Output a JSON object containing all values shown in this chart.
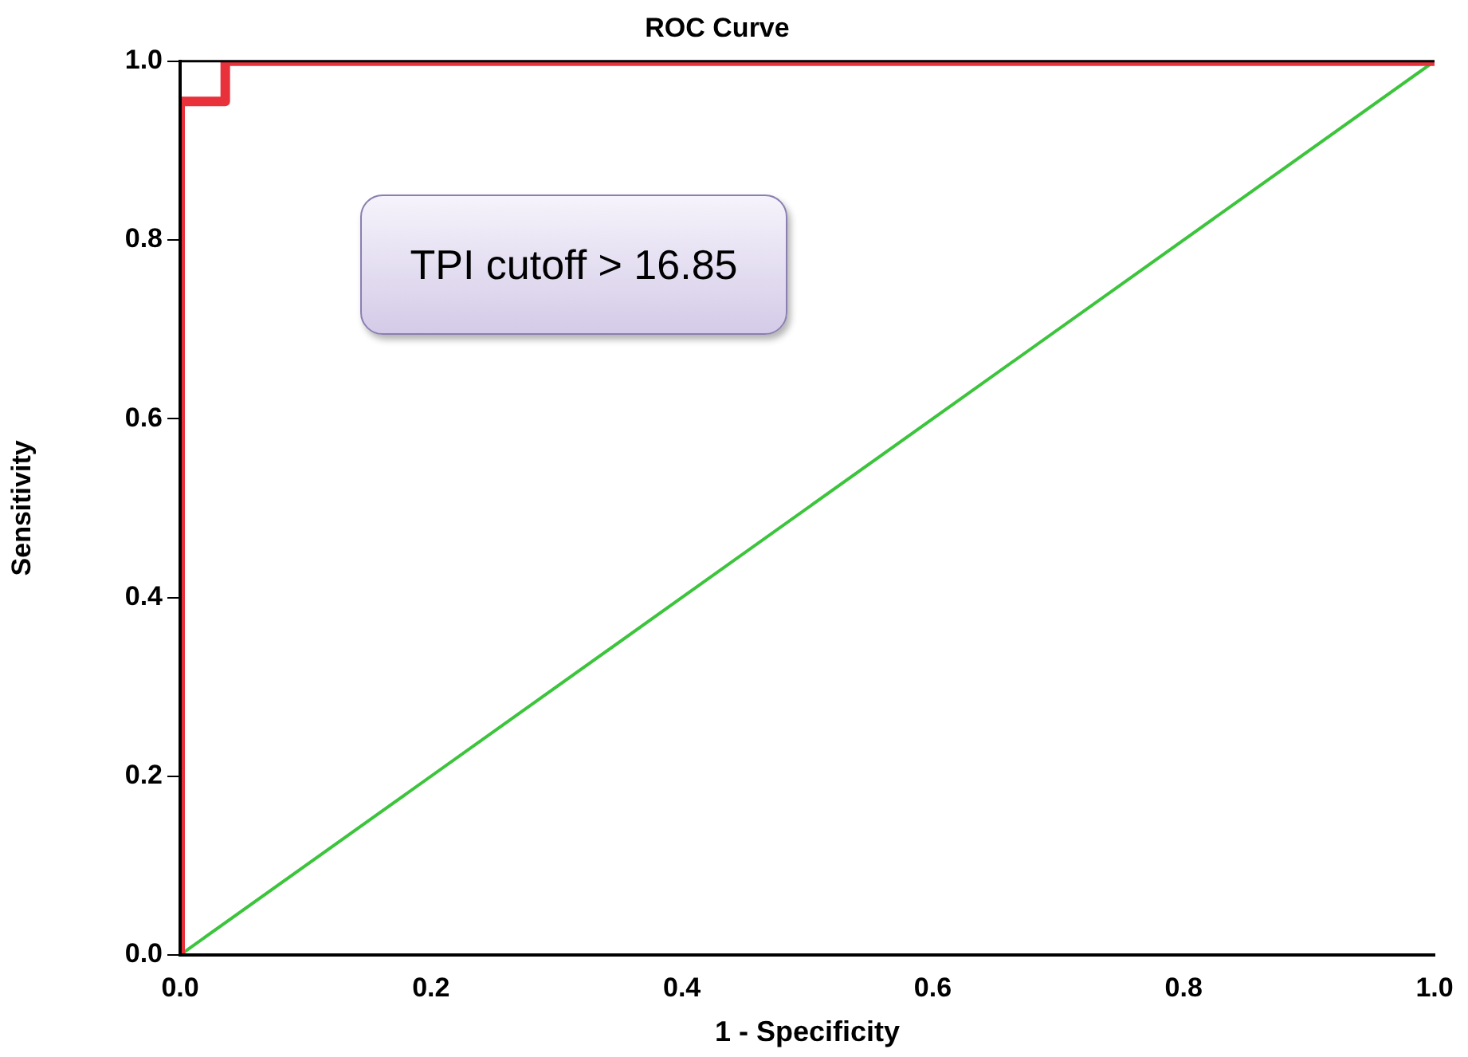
{
  "chart_data": {
    "type": "line",
    "title": "ROC Curve",
    "xlabel": "1 - Specificity",
    "ylabel": "Sensitivity",
    "series": [
      {
        "color": "#e8313a",
        "x": [
          0,
          0,
          0.036,
          0.036,
          1
        ],
        "values": [
          0,
          0.955,
          0.955,
          1,
          1
        ]
      },
      {
        "color": "#3cc43c",
        "x": [
          0,
          1
        ],
        "values": [
          0,
          1
        ]
      }
    ],
    "xlim": [
      0,
      1
    ],
    "ylim": [
      0,
      1
    ],
    "xticks": [
      {
        "value": 0,
        "label": "0.0"
      },
      {
        "value": 0.2,
        "label": "0.2"
      },
      {
        "value": 0.4,
        "label": "0.4"
      },
      {
        "value": 0.6,
        "label": "0.6"
      },
      {
        "value": 0.8,
        "label": "0.8"
      },
      {
        "value": 1,
        "label": "1.0"
      }
    ],
    "yticks": [
      {
        "value": 0,
        "label": "0.0"
      },
      {
        "value": 0.2,
        "label": "0.2"
      },
      {
        "value": 0.4,
        "label": "0.4"
      },
      {
        "value": 0.6,
        "label": "0.6"
      },
      {
        "value": 0.8,
        "label": "0.8"
      },
      {
        "value": 1,
        "label": "1.0"
      }
    ],
    "grid": false,
    "legend": false,
    "marker": "none",
    "line_style": "solid",
    "annotations": [
      "TPI cutoff > 16.85"
    ]
  }
}
